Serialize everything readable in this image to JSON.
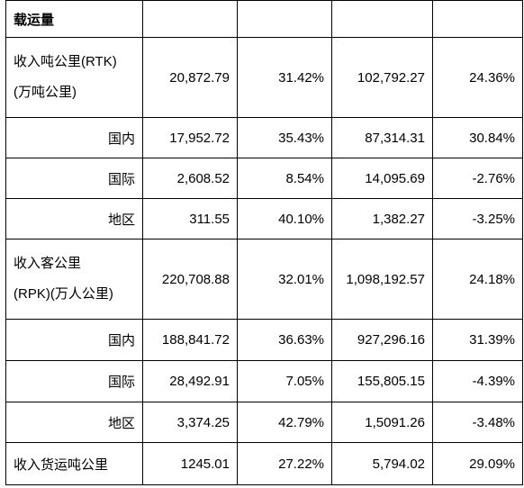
{
  "table": {
    "header": "载运量",
    "rows": [
      {
        "label_line1": "收入吨公里(RTK)",
        "label_line2": "(万吨公里)",
        "v1": "20,872.79",
        "v2": "31.42%",
        "v3": "102,792.27",
        "v4": "24.36%"
      },
      {
        "label": "国内",
        "v1": "17,952.72",
        "v2": "35.43%",
        "v3": "87,314.31",
        "v4": "30.84%"
      },
      {
        "label": "国际",
        "v1": "2,608.52",
        "v2": "8.54%",
        "v3": "14,095.69",
        "v4": "-2.76%"
      },
      {
        "label": "地区",
        "v1": "311.55",
        "v2": "40.10%",
        "v3": "1,382.27",
        "v4": "-3.25%"
      },
      {
        "label_line1": "收入客公里",
        "label_line2": "(RPK)(万人公里)",
        "v1": "220,708.88",
        "v2": "32.01%",
        "v3": "1,098,192.57",
        "v4": "24.18%"
      },
      {
        "label": "国内",
        "v1": "188,841.72",
        "v2": "36.63%",
        "v3": "927,296.16",
        "v4": "31.39%"
      },
      {
        "label": "国际",
        "v1": "28,492.91",
        "v2": "7.05%",
        "v3": "155,805.15",
        "v4": "-4.39%"
      },
      {
        "label": "地区",
        "v1": "3,374.25",
        "v2": "42.79%",
        "v3": "1,5091.26",
        "v4": "-3.48%"
      },
      {
        "label": "收入货运吨公里",
        "v1": "1245.01",
        "v2": "27.22%",
        "v3": "5,794.02",
        "v4": "29.09%"
      }
    ]
  }
}
